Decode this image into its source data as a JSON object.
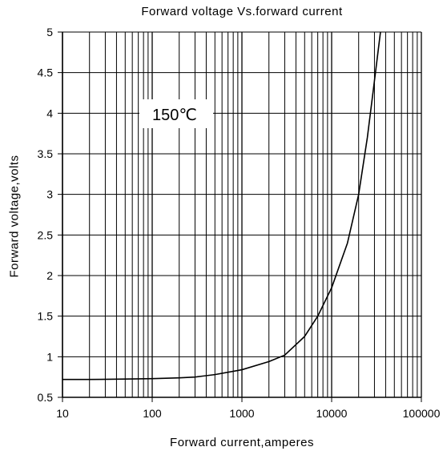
{
  "chart_data": {
    "type": "line",
    "title": "Forward voltage Vs.forward current",
    "xlabel": "Forward current,amperes",
    "ylabel": "Forward voltage,volts",
    "xscale": "log",
    "xlim": [
      10,
      100000
    ],
    "ylim": [
      0.5,
      5
    ],
    "xticks": [
      "10",
      "100",
      "1000",
      "10000",
      "100000"
    ],
    "yticks": [
      "0.5",
      "1",
      "1.5",
      "2",
      "2.5",
      "3",
      "3.5",
      "4",
      "4.5",
      "5"
    ],
    "grid": true,
    "annotations": [
      {
        "text": "150℃"
      }
    ],
    "series": [
      {
        "x": [
          10,
          20,
          50,
          100,
          200,
          300,
          500,
          1000,
          2000,
          3000,
          5000,
          7000,
          10000,
          15000,
          20000,
          25000,
          30000,
          35000
        ],
        "y": [
          0.72,
          0.72,
          0.725,
          0.73,
          0.74,
          0.75,
          0.78,
          0.84,
          0.94,
          1.02,
          1.25,
          1.5,
          1.85,
          2.4,
          3.0,
          3.7,
          4.4,
          5.0
        ]
      }
    ]
  }
}
